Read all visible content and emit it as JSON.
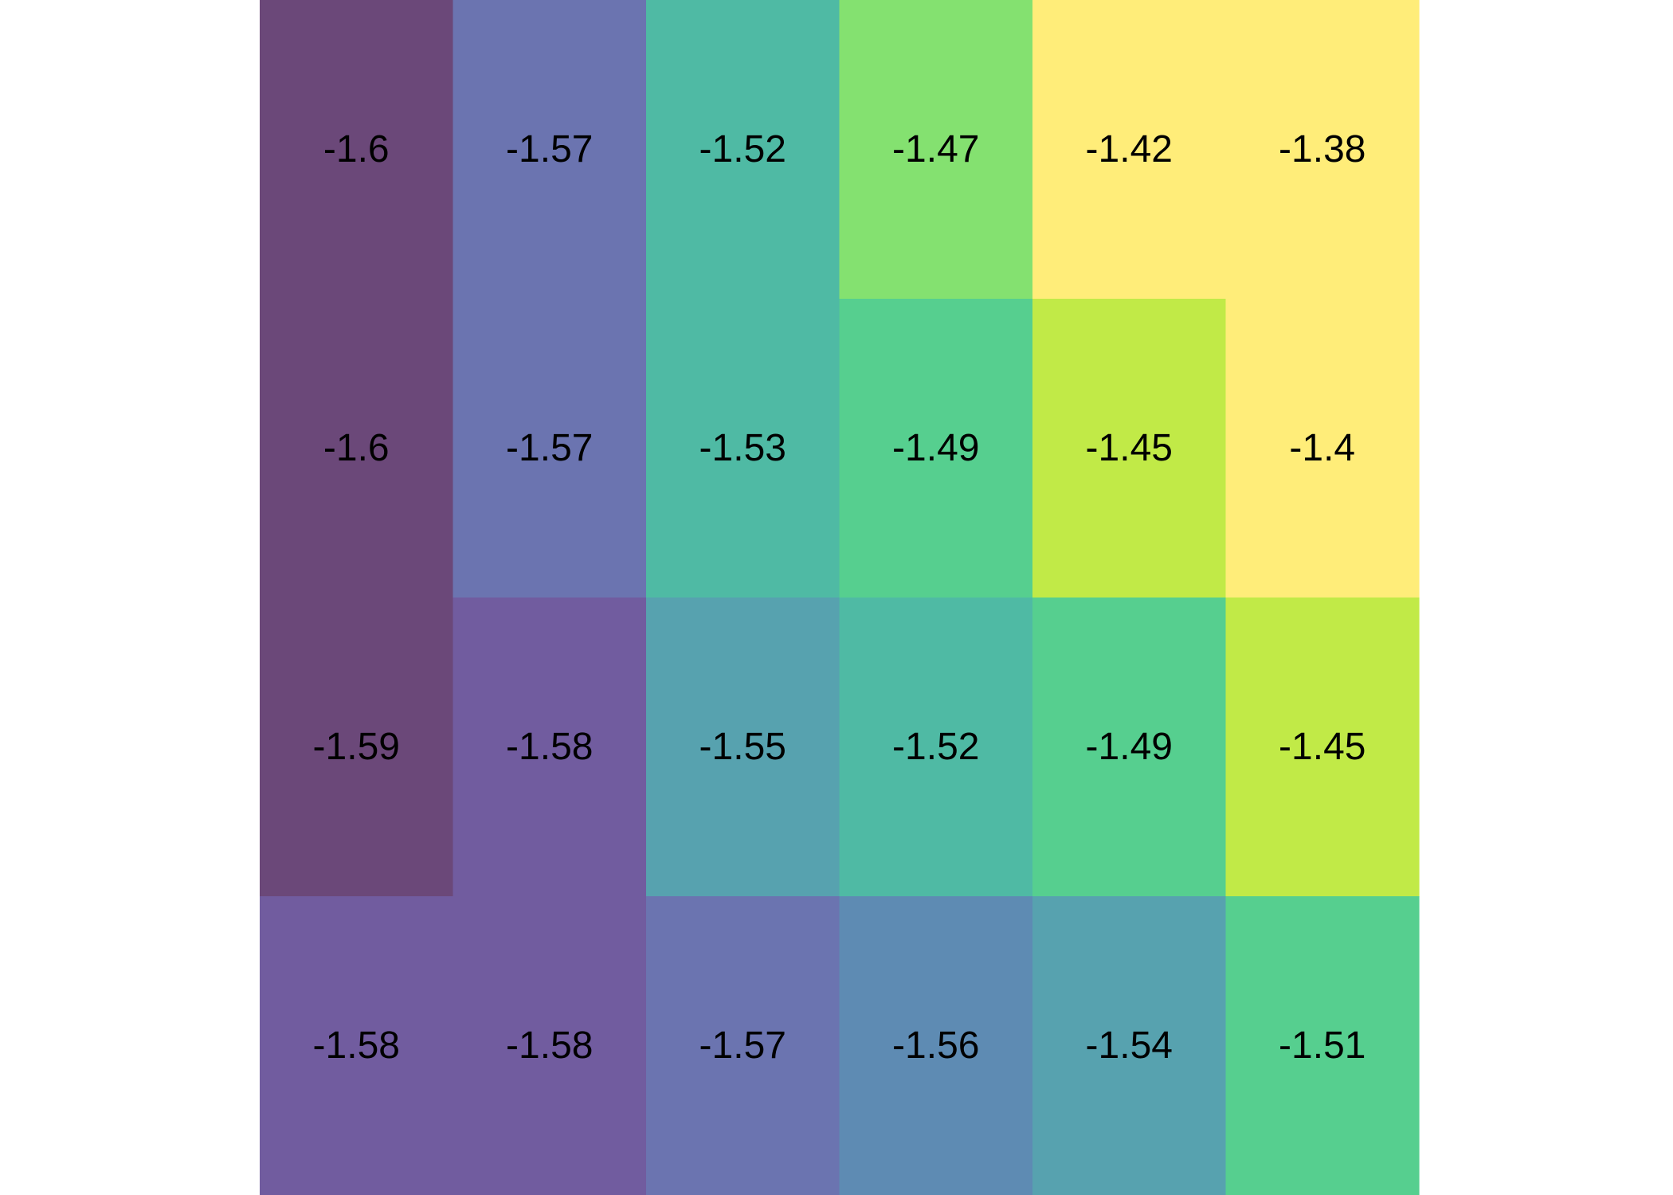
{
  "chart_data": {
    "type": "heatmap",
    "title": "",
    "xlabel": "",
    "ylabel": "",
    "grid": false,
    "legend": "none",
    "n_rows": 4,
    "n_cols": 6,
    "values": [
      [
        -1.6,
        -1.57,
        -1.52,
        -1.47,
        -1.42,
        -1.38
      ],
      [
        -1.6,
        -1.57,
        -1.53,
        -1.49,
        -1.45,
        -1.4
      ],
      [
        -1.59,
        -1.58,
        -1.55,
        -1.52,
        -1.49,
        -1.45
      ],
      [
        -1.58,
        -1.58,
        -1.57,
        -1.56,
        -1.54,
        -1.51
      ]
    ],
    "labels": [
      [
        "-1.6",
        "-1.57",
        "-1.52",
        "-1.47",
        "-1.42",
        "-1.38"
      ],
      [
        "-1.6",
        "-1.57",
        "-1.53",
        "-1.49",
        "-1.45",
        "-1.4"
      ],
      [
        "-1.59",
        "-1.58",
        "-1.55",
        "-1.52",
        "-1.49",
        "-1.45"
      ],
      [
        "-1.58",
        "-1.58",
        "-1.57",
        "-1.56",
        "-1.54",
        "-1.51"
      ]
    ],
    "colors": [
      [
        "#6b4879",
        "#6b74b0",
        "#4fbaa4",
        "#84e170",
        "#ffed79",
        "#ffed79"
      ],
      [
        "#6b4879",
        "#6b74b0",
        "#4fbaa4",
        "#56cf8f",
        "#c1ea47",
        "#ffed79"
      ],
      [
        "#6b4879",
        "#715c9f",
        "#57a2af",
        "#4fbaa4",
        "#56cf8f",
        "#c1ea47"
      ],
      [
        "#715c9f",
        "#715c9f",
        "#6b74b0",
        "#5e8bb3",
        "#57a2af",
        "#56cf8f"
      ]
    ]
  }
}
